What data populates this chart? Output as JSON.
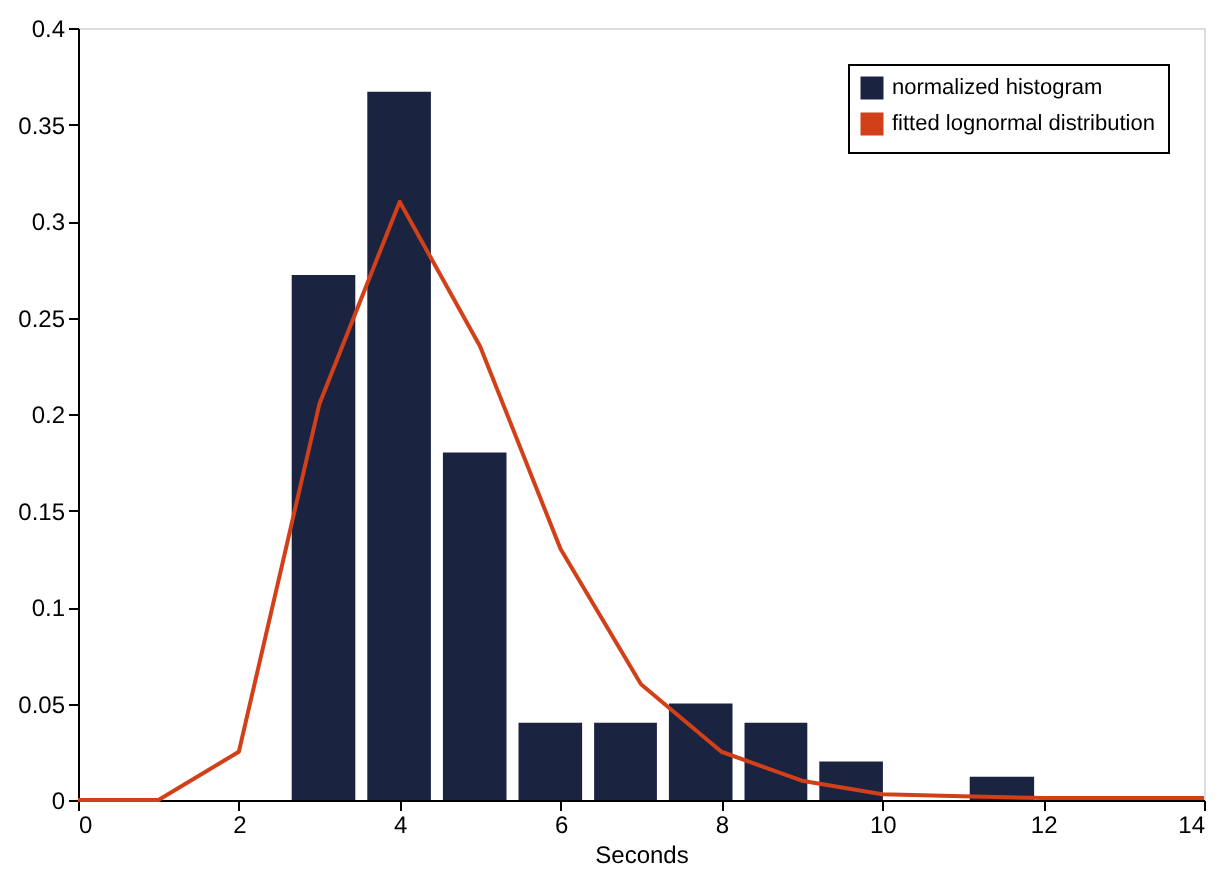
{
  "chart_data": {
    "type": "histogram",
    "xlabel": "Seconds",
    "series": [
      {
        "name": "normalized histogram",
        "color": "#1a2340",
        "bins": [
          2.57,
          3.51,
          4.45,
          5.39,
          6.33,
          7.26,
          8.2,
          9.13,
          10.07,
          11.0,
          11.95
        ],
        "values": [
          0.272,
          0.367,
          0.18,
          0.04,
          0.04,
          0.05,
          0.04,
          0.02,
          0,
          0.012
        ]
      },
      {
        "type": "line",
        "name": "fitted lognormal distribution",
        "color": "#d2401a",
        "x": [
          0,
          1,
          2,
          3,
          4,
          5,
          6,
          7,
          8,
          9,
          10,
          11,
          12,
          13,
          14
        ],
        "values": [
          0,
          0,
          0.025,
          0.205,
          0.31,
          0.235,
          0.13,
          0.06,
          0.025,
          0.01,
          0.003,
          0.002,
          0.001,
          0.001,
          0.001
        ]
      }
    ],
    "xlim": [
      0,
      14
    ],
    "xticks": [
      0,
      2,
      4,
      6,
      8,
      10,
      12,
      14
    ],
    "ylim": [
      0,
      0.4
    ],
    "yticks": [
      0,
      0.05,
      0.1,
      0.15,
      0.2,
      0.25,
      0.3,
      0.35,
      0.4
    ],
    "grid": false,
    "legend": "top right"
  }
}
